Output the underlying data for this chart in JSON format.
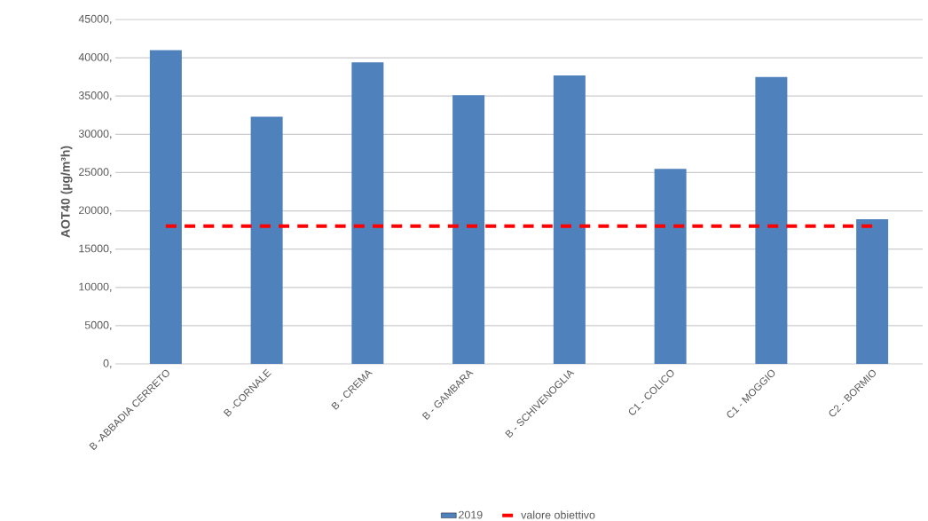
{
  "chart_data": {
    "type": "bar",
    "ylabel": "AOT40 (µg/m³h)",
    "categories": [
      "B -ABBADIA CERRETO",
      "B -CORNALE",
      "B - CREMA",
      "B - GAMBARA",
      "B - SCHIVENOGLIA",
      "C1 - COLICO",
      "C1 - MOGGIO",
      "C2 - BORMIO"
    ],
    "series": [
      {
        "name": "2019",
        "color": "#4f81bd",
        "values": [
          41000,
          32300,
          39400,
          35100,
          37700,
          25500,
          37500,
          18900
        ]
      },
      {
        "name": "valore obiettivo",
        "type": "line",
        "color": "#ff0000",
        "line_style": "dashed",
        "values": [
          18000,
          18000,
          18000,
          18000,
          18000,
          18000,
          18000,
          18000
        ]
      }
    ],
    "ylim": [
      0,
      45000
    ],
    "yticks": [
      {
        "value": 0,
        "label": "0,"
      },
      {
        "value": 5000,
        "label": "5000,"
      },
      {
        "value": 10000,
        "label": "10000,"
      },
      {
        "value": 15000,
        "label": "15000,"
      },
      {
        "value": 20000,
        "label": "20000,"
      },
      {
        "value": 25000,
        "label": "25000,"
      },
      {
        "value": 30000,
        "label": "30000,"
      },
      {
        "value": 35000,
        "label": "35000,"
      },
      {
        "value": 40000,
        "label": "40000,"
      },
      {
        "value": 45000,
        "label": "45000,"
      }
    ],
    "grid": "y",
    "legend": "bottom"
  }
}
